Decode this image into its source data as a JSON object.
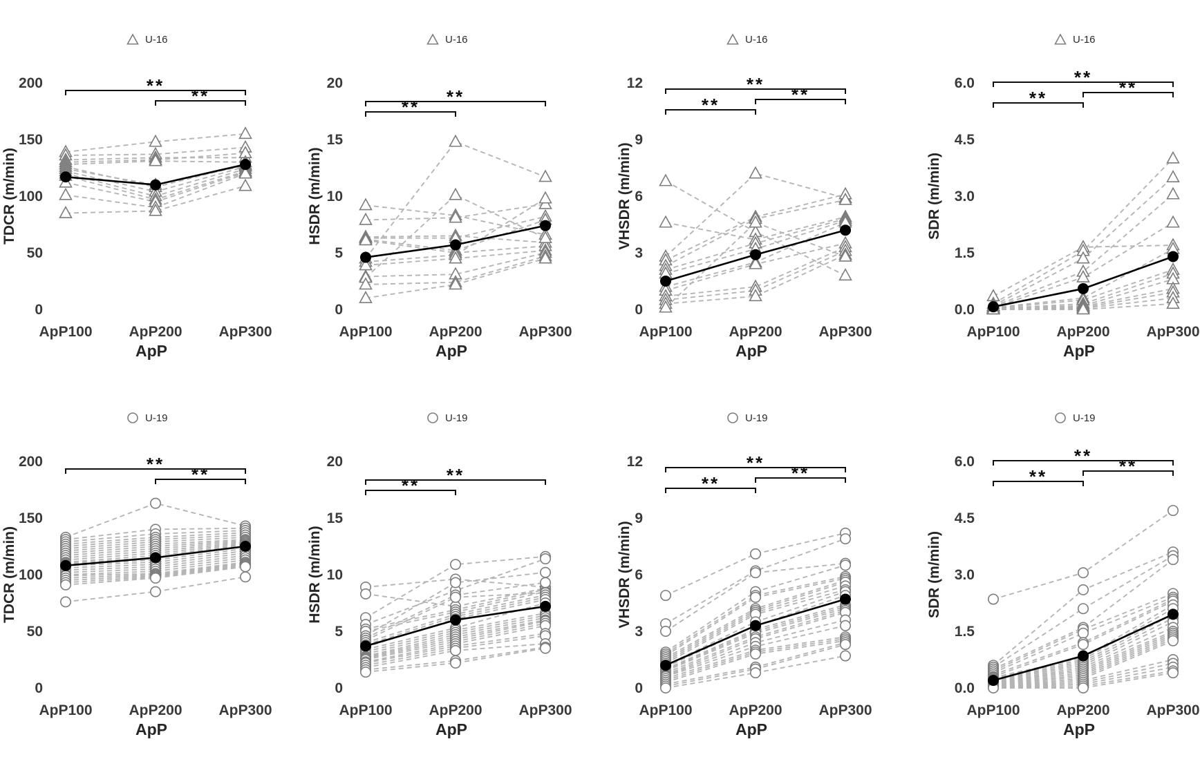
{
  "figure": {
    "rows": [
      {
        "group": "U-16",
        "legend_label": "U-16",
        "marker": "triangle"
      },
      {
        "group": "U-19",
        "legend_label": "U-19",
        "marker": "circle"
      }
    ],
    "x_axis_title": "ApP",
    "x_categories": [
      "ApP100",
      "ApP200",
      "ApP300"
    ],
    "significance_label": "**"
  },
  "colors": {
    "mean": "#000000",
    "marker_stroke": "#7d7d7d",
    "marker_fill": "#ffffff",
    "dash_line": "#b5b5b5",
    "axis_text": "#3a3a3a",
    "sig": "#0d0d0d"
  },
  "chart_data": [
    {
      "id": "tdcr-u16",
      "type": "line",
      "group": "U-16",
      "marker": "triangle",
      "ylabel": "TDCR (m/min)",
      "xlabel": "ApP",
      "categories": [
        "ApP100",
        "ApP200",
        "ApP300"
      ],
      "ylim": [
        0,
        200
      ],
      "yticks": [
        200,
        150,
        100,
        50,
        0
      ],
      "ytick_labels": [
        "200",
        "150",
        "100",
        "50",
        "0"
      ],
      "legend": {
        "marker": "triangle",
        "label": "U-16"
      },
      "means": [
        117,
        110,
        128
      ],
      "individuals": [
        [
          139,
          148,
          155
        ],
        [
          136,
          137,
          143
        ],
        [
          132,
          134,
          134
        ],
        [
          130,
          132,
          138
        ],
        [
          128,
          131,
          130
        ],
        [
          126,
          108,
          128
        ],
        [
          124,
          110,
          127
        ],
        [
          122,
          104,
          126
        ],
        [
          120,
          100,
          124
        ],
        [
          118,
          97,
          122
        ],
        [
          112,
          95,
          121
        ],
        [
          101,
          90,
          120
        ],
        [
          85,
          87,
          109
        ]
      ],
      "comparisons": [
        {
          "from": 0,
          "to": 2,
          "label": "**"
        },
        {
          "from": 1,
          "to": 2,
          "label": "**"
        }
      ]
    },
    {
      "id": "hsdr-u16",
      "type": "line",
      "group": "U-16",
      "marker": "triangle",
      "ylabel": "HSDR (m/min)",
      "xlabel": "ApP",
      "categories": [
        "ApP100",
        "ApP200",
        "ApP300"
      ],
      "ylim": [
        0,
        20
      ],
      "yticks": [
        20,
        15,
        10,
        5,
        0
      ],
      "ytick_labels": [
        "20",
        "15",
        "10",
        "5",
        "0"
      ],
      "legend": {
        "marker": "triangle",
        "label": "U-16"
      },
      "means": [
        4.6,
        5.7,
        7.4
      ],
      "individuals": [
        [
          9.2,
          8.3,
          6.6
        ],
        [
          7.9,
          8.1,
          9.3
        ],
        [
          6.4,
          6.5,
          5.9
        ],
        [
          6.3,
          6.3,
          8.2
        ],
        [
          6.2,
          5.2,
          7.9
        ],
        [
          6.1,
          5.0,
          5.6
        ],
        [
          4.5,
          14.8,
          11.7
        ],
        [
          4.2,
          4.8,
          9.8
        ],
        [
          3.9,
          4.5,
          5.2
        ],
        [
          2.9,
          3.1,
          5.0
        ],
        [
          2.8,
          10.1,
          6.3
        ],
        [
          2.2,
          2.4,
          4.7
        ],
        [
          1.0,
          2.2,
          4.5
        ]
      ],
      "comparisons": [
        {
          "from": 0,
          "to": 2,
          "label": "**"
        },
        {
          "from": 0,
          "to": 1,
          "label": "**"
        }
      ]
    },
    {
      "id": "vhsdr-u16",
      "type": "line",
      "group": "U-16",
      "marker": "triangle",
      "ylabel": "VHSDR (m/min)",
      "xlabel": "ApP",
      "categories": [
        "ApP100",
        "ApP200",
        "ApP300"
      ],
      "ylim": [
        0,
        12
      ],
      "yticks": [
        12,
        9,
        6,
        3,
        0
      ],
      "ytick_labels": [
        "12",
        "9",
        "6",
        "3",
        "0"
      ],
      "legend": {
        "marker": "triangle",
        "label": "U-16"
      },
      "means": [
        1.5,
        2.9,
        4.2
      ],
      "individuals": [
        [
          6.8,
          4.1,
          1.8
        ],
        [
          4.6,
          3.7,
          4.9
        ],
        [
          2.8,
          7.2,
          5.9
        ],
        [
          2.6,
          4.9,
          6.1
        ],
        [
          2.3,
          4.8,
          5.8
        ],
        [
          2.1,
          3.5,
          4.8
        ],
        [
          1.9,
          3.2,
          4.7
        ],
        [
          1.2,
          2.5,
          4.6
        ],
        [
          1.0,
          2.4,
          3.5
        ],
        [
          0.7,
          1.2,
          3.3
        ],
        [
          0.5,
          1.0,
          3.1
        ],
        [
          0.3,
          0.7,
          2.9
        ],
        [
          0.1,
          4.6,
          2.8
        ]
      ],
      "comparisons": [
        {
          "from": 0,
          "to": 2,
          "label": "**"
        },
        {
          "from": 1,
          "to": 2,
          "label": "**"
        },
        {
          "from": 0,
          "to": 1,
          "label": "**"
        }
      ]
    },
    {
      "id": "sdr-u16",
      "type": "line",
      "group": "U-16",
      "marker": "triangle",
      "ylabel": "SDR (m/min)",
      "xlabel": "ApP",
      "categories": [
        "ApP100",
        "ApP200",
        "ApP300"
      ],
      "ylim": [
        0,
        6
      ],
      "yticks": [
        6,
        4.5,
        3,
        1.5,
        0
      ],
      "ytick_labels": [
        "6.0",
        "4.5",
        "3.0",
        "1.5",
        "0.0"
      ],
      "legend": {
        "marker": "triangle",
        "label": "U-16"
      },
      "means": [
        0.07,
        0.55,
        1.4
      ],
      "individuals": [
        [
          0.35,
          1.65,
          1.7
        ],
        [
          0.15,
          1.55,
          4.0
        ],
        [
          0.1,
          1.35,
          3.5
        ],
        [
          0.08,
          1.0,
          3.05
        ],
        [
          0.05,
          0.85,
          2.3
        ],
        [
          0.05,
          0.3,
          1.6
        ],
        [
          0.03,
          0.25,
          1.05
        ],
        [
          0.02,
          0.15,
          0.95
        ],
        [
          0.02,
          0.1,
          0.8
        ],
        [
          0.01,
          0.08,
          0.55
        ],
        [
          0.01,
          0.05,
          0.45
        ],
        [
          0.0,
          0.03,
          0.3
        ],
        [
          0.0,
          0.0,
          0.15
        ]
      ],
      "comparisons": [
        {
          "from": 0,
          "to": 2,
          "label": "**"
        },
        {
          "from": 1,
          "to": 2,
          "label": "**"
        },
        {
          "from": 0,
          "to": 1,
          "label": "**"
        }
      ]
    },
    {
      "id": "tdcr-u19",
      "type": "line",
      "group": "U-19",
      "marker": "circle",
      "ylabel": "TDCR (m/min)",
      "xlabel": "ApP",
      "categories": [
        "ApP100",
        "ApP200",
        "ApP300"
      ],
      "ylim": [
        0,
        200
      ],
      "yticks": [
        200,
        150,
        100,
        50,
        0
      ],
      "ytick_labels": [
        "200",
        "150",
        "100",
        "50",
        "0"
      ],
      "legend": {
        "marker": "circle",
        "label": "U-19"
      },
      "means": [
        108,
        115,
        125
      ],
      "individuals": [
        [
          133,
          163,
          143
        ],
        [
          131,
          140,
          141
        ],
        [
          129,
          136,
          139
        ],
        [
          127,
          133,
          137
        ],
        [
          125,
          131,
          135
        ],
        [
          123,
          129,
          133
        ],
        [
          121,
          127,
          131
        ],
        [
          119,
          125,
          130
        ],
        [
          117,
          123,
          129
        ],
        [
          115,
          121,
          128
        ],
        [
          113,
          119,
          127
        ],
        [
          111,
          117,
          126
        ],
        [
          110,
          115,
          125
        ],
        [
          109,
          113,
          123
        ],
        [
          108,
          111,
          121
        ],
        [
          106,
          109,
          119
        ],
        [
          104,
          107,
          117
        ],
        [
          102,
          105,
          115
        ],
        [
          100,
          103,
          113
        ],
        [
          99,
          101,
          111
        ],
        [
          97,
          100,
          110
        ],
        [
          95,
          99,
          109
        ],
        [
          93,
          98,
          108
        ],
        [
          91,
          97,
          107
        ],
        [
          76,
          85,
          98
        ]
      ],
      "comparisons": [
        {
          "from": 0,
          "to": 2,
          "label": "**"
        },
        {
          "from": 1,
          "to": 2,
          "label": "**"
        }
      ]
    },
    {
      "id": "hsdr-u19",
      "type": "line",
      "group": "U-19",
      "marker": "circle",
      "ylabel": "HSDR (m/min)",
      "xlabel": "ApP",
      "categories": [
        "ApP100",
        "ApP200",
        "ApP300"
      ],
      "ylim": [
        0,
        20
      ],
      "yticks": [
        20,
        15,
        10,
        5,
        0
      ],
      "ytick_labels": [
        "20",
        "15",
        "10",
        "5",
        "0"
      ],
      "legend": {
        "marker": "circle",
        "label": "U-19"
      },
      "means": [
        3.7,
        6.0,
        7.2
      ],
      "individuals": [
        [
          8.9,
          9.6,
          8.9
        ],
        [
          8.3,
          7.2,
          8.8
        ],
        [
          6.2,
          10.9,
          11.6
        ],
        [
          5.6,
          8.6,
          11.4
        ],
        [
          5.2,
          6.9,
          8.7
        ],
        [
          5.0,
          6.7,
          8.5
        ],
        [
          4.6,
          9.3,
          10.2
        ],
        [
          4.4,
          8.2,
          9.3
        ],
        [
          4.2,
          8.0,
          8.4
        ],
        [
          4.0,
          6.5,
          8.2
        ],
        [
          3.8,
          6.3,
          8.0
        ],
        [
          3.6,
          6.1,
          7.8
        ],
        [
          3.4,
          5.3,
          7.5
        ],
        [
          3.2,
          5.1,
          6.6
        ],
        [
          3.0,
          4.9,
          6.4
        ],
        [
          2.8,
          4.7,
          6.2
        ],
        [
          2.7,
          4.5,
          6.0
        ],
        [
          2.6,
          4.3,
          5.9
        ],
        [
          2.5,
          4.1,
          5.7
        ],
        [
          2.3,
          3.9,
          5.5
        ],
        [
          2.2,
          3.7,
          4.8
        ],
        [
          2.0,
          3.5,
          4.6
        ],
        [
          1.8,
          3.3,
          3.9
        ],
        [
          1.6,
          2.4,
          3.6
        ],
        [
          1.4,
          2.2,
          3.5
        ]
      ],
      "comparisons": [
        {
          "from": 0,
          "to": 2,
          "label": "**"
        },
        {
          "from": 0,
          "to": 1,
          "label": "**"
        }
      ]
    },
    {
      "id": "vhsdr-u19",
      "type": "line",
      "group": "U-19",
      "marker": "circle",
      "ylabel": "VHSDR (m/min)",
      "xlabel": "ApP",
      "categories": [
        "ApP100",
        "ApP200",
        "ApP300"
      ],
      "ylim": [
        0,
        12
      ],
      "yticks": [
        12,
        9,
        6,
        3,
        0
      ],
      "ytick_labels": [
        "12",
        "9",
        "6",
        "3",
        "0"
      ],
      "legend": {
        "marker": "circle",
        "label": "U-19"
      },
      "means": [
        1.2,
        3.3,
        4.7
      ],
      "individuals": [
        [
          4.9,
          7.1,
          8.2
        ],
        [
          3.4,
          6.2,
          7.9
        ],
        [
          3.0,
          6.1,
          6.6
        ],
        [
          1.9,
          5.1,
          6.5
        ],
        [
          1.8,
          4.9,
          5.9
        ],
        [
          1.7,
          4.8,
          5.8
        ],
        [
          1.6,
          4.2,
          5.7
        ],
        [
          1.5,
          4.1,
          5.6
        ],
        [
          1.4,
          4.0,
          5.4
        ],
        [
          1.3,
          3.9,
          5.2
        ],
        [
          1.2,
          3.5,
          5.1
        ],
        [
          1.1,
          3.3,
          4.9
        ],
        [
          1.0,
          3.1,
          4.4
        ],
        [
          0.95,
          3.0,
          4.3
        ],
        [
          0.9,
          2.9,
          4.2
        ],
        [
          0.8,
          2.7,
          4.1
        ],
        [
          0.7,
          2.6,
          4.0
        ],
        [
          0.65,
          2.4,
          3.6
        ],
        [
          0.6,
          2.2,
          3.3
        ],
        [
          0.5,
          2.0,
          2.7
        ],
        [
          0.4,
          1.9,
          2.6
        ],
        [
          0.3,
          1.8,
          2.5
        ],
        [
          0.2,
          1.1,
          2.4
        ],
        [
          0.1,
          1.0,
          2.3
        ],
        [
          0.0,
          0.8,
          1.7
        ]
      ],
      "comparisons": [
        {
          "from": 0,
          "to": 2,
          "label": "**"
        },
        {
          "from": 1,
          "to": 2,
          "label": "**"
        },
        {
          "from": 0,
          "to": 1,
          "label": "**"
        }
      ]
    },
    {
      "id": "sdr-u19",
      "type": "line",
      "group": "U-19",
      "marker": "circle",
      "ylabel": "SDR (m/min)",
      "xlabel": "ApP",
      "categories": [
        "ApP100",
        "ApP200",
        "ApP300"
      ],
      "ylim": [
        0,
        6
      ],
      "yticks": [
        6,
        4.5,
        3,
        1.5,
        0
      ],
      "ytick_labels": [
        "6.0",
        "4.5",
        "3.0",
        "1.5",
        "0.0"
      ],
      "legend": {
        "marker": "circle",
        "label": "U-19"
      },
      "means": [
        0.2,
        0.85,
        1.95
      ],
      "individuals": [
        [
          2.35,
          3.05,
          4.7
        ],
        [
          0.6,
          2.6,
          3.6
        ],
        [
          0.55,
          2.1,
          3.5
        ],
        [
          0.5,
          1.6,
          3.4
        ],
        [
          0.45,
          1.55,
          2.5
        ],
        [
          0.4,
          1.45,
          2.4
        ],
        [
          0.35,
          1.2,
          2.35
        ],
        [
          0.3,
          1.15,
          2.3
        ],
        [
          0.28,
          0.8,
          2.2
        ],
        [
          0.25,
          0.75,
          2.1
        ],
        [
          0.22,
          0.7,
          1.95
        ],
        [
          0.2,
          0.65,
          1.85
        ],
        [
          0.18,
          0.6,
          1.75
        ],
        [
          0.15,
          0.55,
          1.6
        ],
        [
          0.13,
          0.5,
          1.5
        ],
        [
          0.12,
          0.45,
          1.45
        ],
        [
          0.1,
          0.4,
          1.4
        ],
        [
          0.08,
          0.35,
          1.35
        ],
        [
          0.07,
          0.3,
          1.3
        ],
        [
          0.05,
          0.25,
          1.25
        ],
        [
          0.04,
          0.2,
          0.75
        ],
        [
          0.03,
          0.15,
          0.65
        ],
        [
          0.02,
          0.1,
          0.55
        ],
        [
          0.01,
          0.05,
          0.45
        ],
        [
          0.0,
          0.0,
          0.4
        ]
      ],
      "comparisons": [
        {
          "from": 0,
          "to": 2,
          "label": "**"
        },
        {
          "from": 1,
          "to": 2,
          "label": "**"
        },
        {
          "from": 0,
          "to": 1,
          "label": "**"
        }
      ]
    }
  ]
}
